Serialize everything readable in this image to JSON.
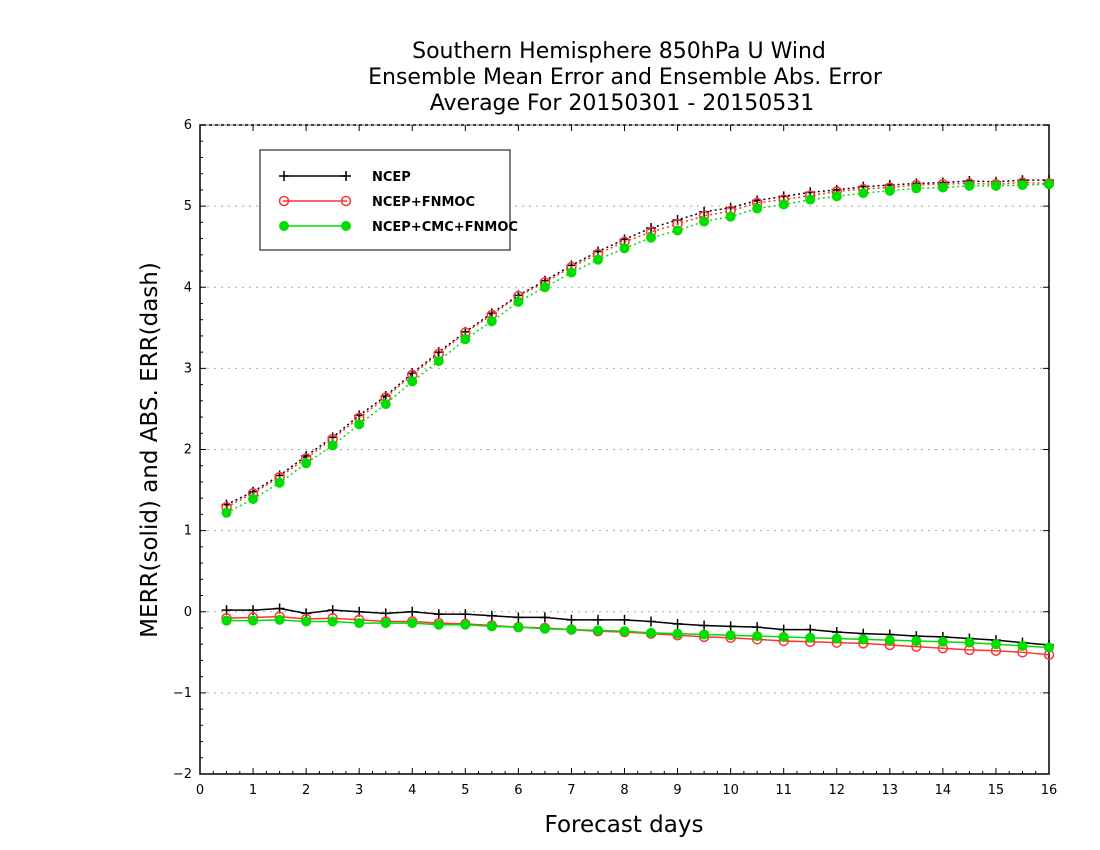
{
  "chart_data": {
    "type": "line",
    "title": [
      "Southern Hemisphere 850hPa U Wind",
      "Ensemble Mean Error and Ensemble Abs. Error",
      "Average For 20150301 - 20150531"
    ],
    "xlabel": "Forecast days",
    "ylabel": "MERR(solid) and ABS. ERR(dash)",
    "xlim": [
      0,
      16
    ],
    "ylim": [
      -2,
      6
    ],
    "xticks": [
      "0",
      "1",
      "2",
      "3",
      "4",
      "5",
      "6",
      "7",
      "8",
      "9",
      "10",
      "11",
      "12",
      "13",
      "14",
      "15",
      "16"
    ],
    "yticks": [
      "−2",
      "−1",
      "0",
      "1",
      "2",
      "3",
      "4",
      "5",
      "6"
    ],
    "grid": "horizontal dotted",
    "legend_position": "top-left",
    "x": [
      0.5,
      1,
      1.5,
      2,
      2.5,
      3,
      3.5,
      4,
      4.5,
      5,
      5.5,
      6,
      6.5,
      7,
      7.5,
      8,
      8.5,
      9,
      9.5,
      10,
      10.5,
      11,
      11.5,
      12,
      12.5,
      13,
      13.5,
      14,
      14.5,
      15,
      15.5,
      16
    ],
    "series": [
      {
        "name": "NCEP",
        "color": "#000000",
        "marker": "plus",
        "merr": [
          0.02,
          0.02,
          0.04,
          -0.02,
          0.02,
          0.0,
          -0.02,
          0.0,
          -0.03,
          -0.03,
          -0.05,
          -0.07,
          -0.07,
          -0.1,
          -0.1,
          -0.1,
          -0.12,
          -0.15,
          -0.17,
          -0.18,
          -0.19,
          -0.22,
          -0.22,
          -0.25,
          -0.27,
          -0.28,
          -0.3,
          -0.31,
          -0.33,
          -0.35,
          -0.38,
          -0.41
        ],
        "abs_err": [
          1.32,
          1.48,
          1.68,
          1.92,
          2.15,
          2.42,
          2.66,
          2.94,
          3.2,
          3.45,
          3.68,
          3.9,
          4.08,
          4.27,
          4.44,
          4.59,
          4.73,
          4.83,
          4.93,
          4.98,
          5.07,
          5.12,
          5.17,
          5.2,
          5.24,
          5.26,
          5.28,
          5.29,
          5.31,
          5.3,
          5.32,
          5.32
        ]
      },
      {
        "name": "NCEP+FNMOC",
        "color": "#ff3333",
        "marker": "open-circle",
        "merr": [
          -0.08,
          -0.07,
          -0.06,
          -0.09,
          -0.08,
          -0.1,
          -0.12,
          -0.12,
          -0.14,
          -0.15,
          -0.17,
          -0.19,
          -0.2,
          -0.22,
          -0.24,
          -0.25,
          -0.27,
          -0.29,
          -0.31,
          -0.32,
          -0.34,
          -0.36,
          -0.37,
          -0.38,
          -0.39,
          -0.41,
          -0.43,
          -0.45,
          -0.47,
          -0.48,
          -0.5,
          -0.53
        ],
        "abs_err": [
          1.29,
          1.46,
          1.66,
          1.89,
          2.13,
          2.39,
          2.64,
          2.92,
          3.18,
          3.44,
          3.66,
          3.89,
          4.06,
          4.25,
          4.41,
          4.56,
          4.68,
          4.78,
          4.88,
          4.94,
          5.04,
          5.08,
          5.13,
          5.18,
          5.21,
          5.23,
          5.26,
          5.27,
          5.28,
          5.27,
          5.29,
          5.28
        ]
      },
      {
        "name": "NCEP+CMC+FNMOC",
        "color": "#00dd00",
        "marker": "filled-circle",
        "merr": [
          -0.11,
          -0.11,
          -0.1,
          -0.12,
          -0.12,
          -0.14,
          -0.14,
          -0.14,
          -0.16,
          -0.16,
          -0.18,
          -0.19,
          -0.21,
          -0.22,
          -0.23,
          -0.24,
          -0.26,
          -0.27,
          -0.28,
          -0.29,
          -0.3,
          -0.31,
          -0.32,
          -0.33,
          -0.34,
          -0.35,
          -0.36,
          -0.37,
          -0.38,
          -0.4,
          -0.42,
          -0.44
        ],
        "abs_err": [
          1.22,
          1.39,
          1.59,
          1.83,
          2.05,
          2.31,
          2.56,
          2.84,
          3.09,
          3.36,
          3.58,
          3.82,
          4.0,
          4.18,
          4.34,
          4.48,
          4.61,
          4.7,
          4.81,
          4.87,
          4.97,
          5.02,
          5.08,
          5.12,
          5.16,
          5.19,
          5.22,
          5.23,
          5.25,
          5.25,
          5.26,
          5.27
        ]
      }
    ]
  }
}
